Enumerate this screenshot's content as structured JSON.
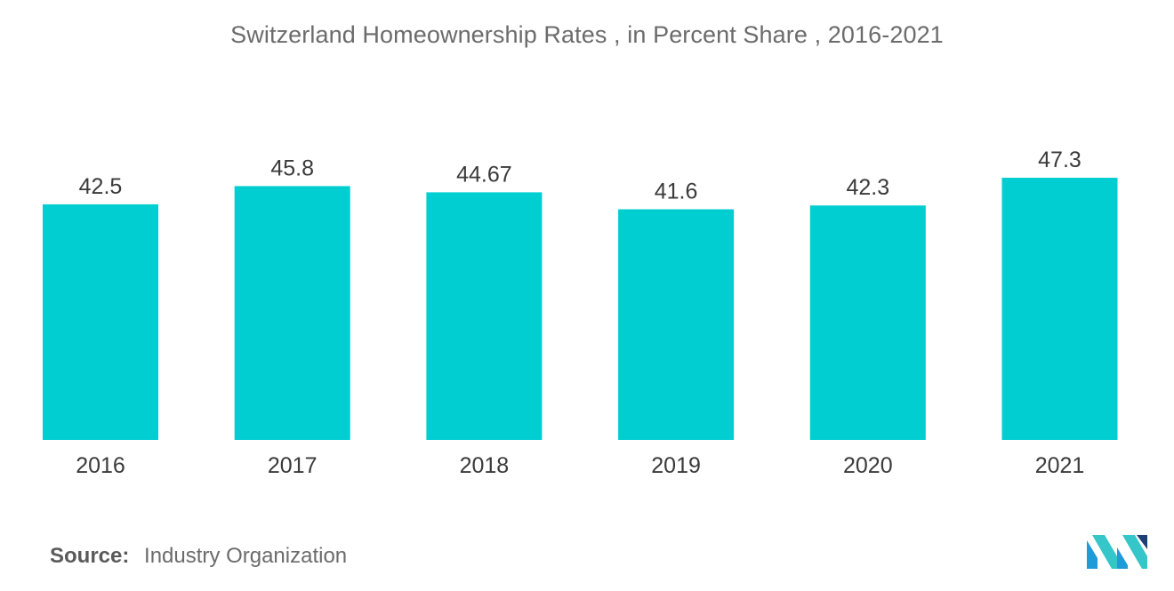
{
  "chart_data": {
    "type": "bar",
    "title": "Switzerland Homeownership Rates , in Percent Share , 2016-2021",
    "categories": [
      "2016",
      "2017",
      "2018",
      "2019",
      "2020",
      "2021"
    ],
    "values": [
      42.5,
      45.8,
      44.67,
      41.6,
      42.3,
      47.3
    ],
    "value_labels": [
      "42.5",
      "45.8",
      "44.67",
      "41.6",
      "42.3",
      "47.3"
    ],
    "xlabel": "",
    "ylabel": "",
    "ylim": [
      0,
      47.3
    ],
    "grid": false,
    "legend": "none",
    "bar_color": "#00CED1"
  },
  "source": {
    "prefix": "Source:",
    "name": "Industry Organization"
  },
  "logo": {
    "icon": "mordor-intelligence-logo-icon",
    "colors": [
      "#1f9bd7",
      "#34c6c9",
      "#1d3f73"
    ]
  }
}
